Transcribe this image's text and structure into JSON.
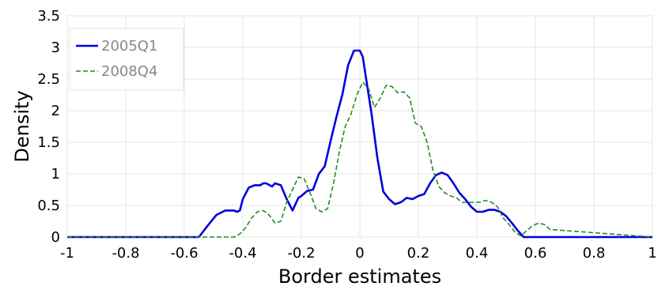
{
  "chart_data": {
    "type": "line",
    "title": "",
    "xlabel": "Border estimates",
    "ylabel": "Density",
    "xlim": [
      -1,
      1
    ],
    "ylim": [
      0,
      3.5
    ],
    "xticks": [
      -1,
      -0.8,
      -0.6,
      -0.4,
      -0.2,
      0,
      0.2,
      0.4,
      0.6,
      0.8,
      1
    ],
    "xtick_labels": [
      "-1",
      "-0.8",
      "-0.6",
      "-0.4",
      "-0.2",
      "0",
      "0.2",
      "0.4",
      "0.6",
      "0.8",
      "1"
    ],
    "yticks": [
      0,
      0.5,
      1,
      1.5,
      2,
      2.5,
      3,
      3.5
    ],
    "ytick_labels": [
      "0",
      "0.5",
      "1",
      "1.5",
      "2",
      "2.5",
      "3",
      "3.5"
    ],
    "grid": true,
    "legend_position": "top-left",
    "series": [
      {
        "name": "2005Q1",
        "color": "#0000dd",
        "style": "solid",
        "x": [
          -1,
          -0.55,
          -0.52,
          -0.49,
          -0.46,
          -0.43,
          -0.42,
          -0.41,
          -0.4,
          -0.38,
          -0.36,
          -0.34,
          -0.33,
          -0.32,
          -0.3,
          -0.29,
          -0.27,
          -0.25,
          -0.23,
          -0.22,
          -0.21,
          -0.2,
          -0.18,
          -0.16,
          -0.14,
          -0.12,
          -0.1,
          -0.08,
          -0.06,
          -0.04,
          -0.02,
          0.0,
          0.01,
          0.02,
          0.04,
          0.06,
          0.08,
          0.1,
          0.12,
          0.14,
          0.16,
          0.18,
          0.2,
          0.22,
          0.24,
          0.26,
          0.28,
          0.3,
          0.32,
          0.34,
          0.36,
          0.38,
          0.4,
          0.42,
          0.44,
          0.46,
          0.48,
          0.5,
          0.52,
          0.54,
          0.56,
          0.58,
          1
        ],
        "y": [
          0,
          0,
          0.18,
          0.35,
          0.42,
          0.42,
          0.4,
          0.42,
          0.6,
          0.78,
          0.82,
          0.82,
          0.85,
          0.85,
          0.8,
          0.85,
          0.82,
          0.6,
          0.42,
          0.52,
          0.62,
          0.65,
          0.73,
          0.75,
          1.0,
          1.12,
          1.52,
          1.9,
          2.25,
          2.72,
          2.95,
          2.95,
          2.85,
          2.55,
          1.95,
          1.25,
          0.72,
          0.6,
          0.52,
          0.55,
          0.62,
          0.6,
          0.65,
          0.68,
          0.85,
          0.98,
          1.02,
          0.98,
          0.85,
          0.7,
          0.6,
          0.48,
          0.4,
          0.4,
          0.43,
          0.43,
          0.4,
          0.33,
          0.22,
          0.1,
          0.0,
          0.0,
          0
        ]
      },
      {
        "name": "2008Q4",
        "color": "#228b22",
        "style": "dashed",
        "x": [
          -1,
          -0.43,
          -0.41,
          -0.39,
          -0.37,
          -0.35,
          -0.33,
          -0.31,
          -0.29,
          -0.27,
          -0.25,
          -0.23,
          -0.21,
          -0.19,
          -0.17,
          -0.15,
          -0.13,
          -0.11,
          -0.09,
          -0.07,
          -0.05,
          -0.03,
          -0.01,
          0.01,
          0.03,
          0.05,
          0.07,
          0.09,
          0.11,
          0.13,
          0.15,
          0.17,
          0.19,
          0.21,
          0.23,
          0.25,
          0.27,
          0.29,
          0.31,
          0.33,
          0.35,
          0.37,
          0.39,
          0.41,
          0.43,
          0.45,
          0.47,
          0.49,
          0.51,
          0.53,
          0.55,
          0.57,
          0.59,
          0.61,
          0.63,
          0.65,
          1
        ],
        "y": [
          0,
          0,
          0.05,
          0.15,
          0.3,
          0.4,
          0.42,
          0.35,
          0.22,
          0.25,
          0.55,
          0.75,
          0.95,
          0.92,
          0.7,
          0.45,
          0.4,
          0.45,
          0.85,
          1.35,
          1.75,
          1.95,
          2.25,
          2.45,
          2.35,
          2.05,
          2.2,
          2.4,
          2.38,
          2.28,
          2.3,
          2.2,
          1.8,
          1.75,
          1.5,
          1.05,
          0.8,
          0.7,
          0.65,
          0.62,
          0.55,
          0.55,
          0.55,
          0.55,
          0.58,
          0.55,
          0.48,
          0.3,
          0.2,
          0.08,
          0.02,
          0.1,
          0.18,
          0.22,
          0.2,
          0.12,
          0
        ]
      }
    ]
  }
}
